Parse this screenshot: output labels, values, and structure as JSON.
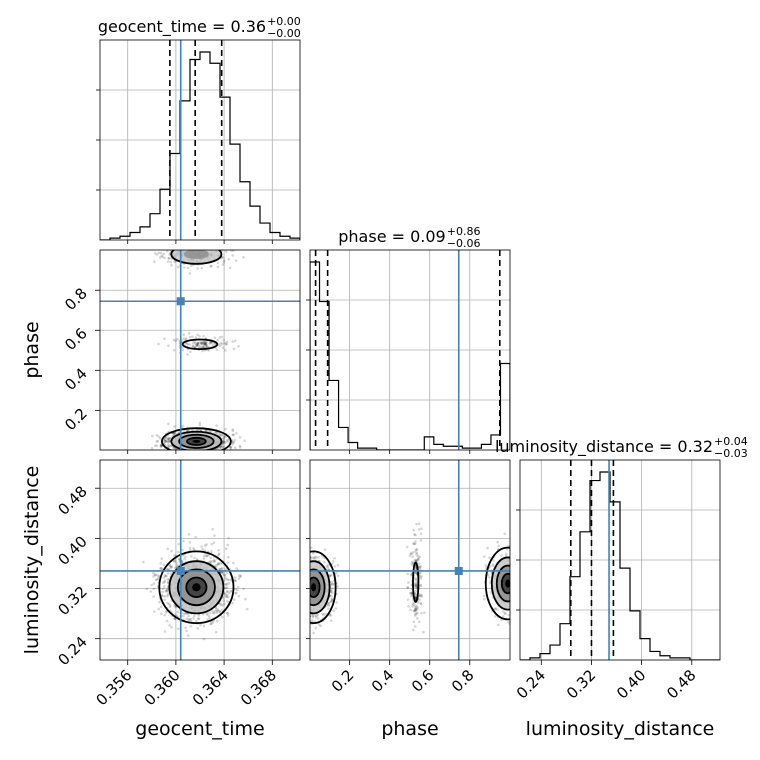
{
  "chart_data": {
    "type": "corner",
    "parameters": [
      "geocent_time",
      "phase",
      "luminosity_distance"
    ],
    "truths": {
      "geocent_time": 0.3604,
      "phase": 0.745,
      "luminosity_distance": 0.348
    },
    "axis_ranges": {
      "geocent_time": [
        0.3537,
        0.3703
      ],
      "phase": [
        0.002,
        1.001
      ],
      "luminosity_distance": [
        0.206,
        0.525
      ]
    },
    "ticks": {
      "geocent_time": [
        0.356,
        0.36,
        0.364,
        0.368
      ],
      "phase": [
        0.2,
        0.4,
        0.6,
        0.8
      ],
      "luminosity_distance": [
        0.24,
        0.32,
        0.4,
        0.48
      ]
    },
    "tick_labels": {
      "geocent_time": [
        "0.356",
        "0.360",
        "0.364",
        "0.368"
      ],
      "phase": [
        "0.2",
        "0.4",
        "0.6",
        "0.8"
      ],
      "luminosity_distance": [
        "0.24",
        "0.32",
        "0.40",
        "0.48"
      ]
    },
    "titles": [
      {
        "param": "geocent_time",
        "main": "geocent_time = 0.36",
        "sup": "+0.00",
        "sub": "−0.00"
      },
      {
        "param": "phase",
        "main": "phase = 0.09",
        "sup": "+0.86",
        "sub": "−0.06"
      },
      {
        "param": "luminosity_distance",
        "main": "luminosity_distance = 0.32",
        "sup": "+0.04",
        "sub": "−0.03"
      }
    ],
    "quantiles": {
      "geocent_time": [
        0.3595,
        0.3616,
        0.3638
      ],
      "phase": [
        0.03,
        0.09,
        0.95
      ],
      "luminosity_distance": [
        0.287,
        0.32,
        0.355
      ]
    },
    "histograms": {
      "geocent_time": [
        0,
        1,
        2,
        4,
        7,
        14,
        27,
        46,
        74,
        96,
        100,
        94,
        76,
        51,
        31,
        18,
        9,
        4,
        2,
        1
      ],
      "phase": [
        100,
        79,
        37,
        12,
        4,
        1,
        1,
        0,
        0,
        0,
        0,
        0,
        7,
        3,
        2,
        2,
        1,
        1,
        3,
        8,
        46
      ],
      "luminosity_distance": [
        0,
        1,
        3,
        7,
        17,
        39,
        60,
        84,
        88,
        74,
        43,
        23,
        10,
        4,
        2,
        1,
        1,
        0,
        0,
        0
      ]
    },
    "grid": true
  }
}
